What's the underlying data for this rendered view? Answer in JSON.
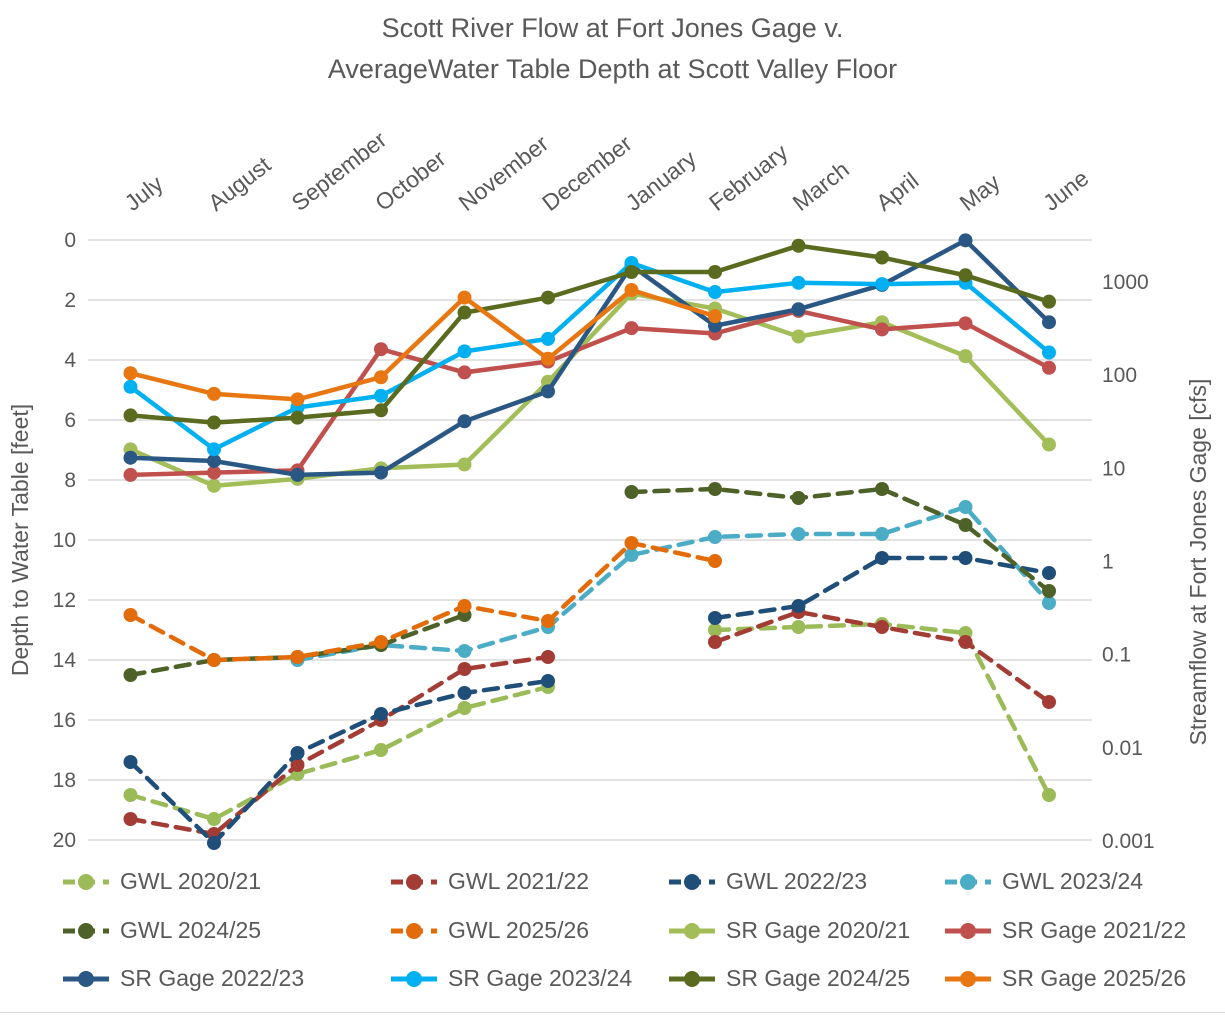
{
  "title": {
    "line1": "Scott River Flow at Fort Jones Gage v.",
    "line2": "AverageWater Table Depth at Scott Valley Floor"
  },
  "axes": {
    "x": {
      "categories": [
        "July",
        "August",
        "September",
        "October",
        "November",
        "December",
        "January",
        "February",
        "March",
        "April",
        "May",
        "June"
      ]
    },
    "y_left": {
      "label": "Depth to Water Table [feet]",
      "ticks": [
        "0",
        "2",
        "4",
        "6",
        "8",
        "10",
        "12",
        "14",
        "16",
        "18",
        "20"
      ],
      "min": 0,
      "max": 20,
      "inverted": true,
      "unit": "feet"
    },
    "y_right": {
      "label": "Streamflow at Fort Jones Gage [cfs]",
      "ticks": [
        "1000",
        "100",
        "10",
        "1",
        "0.1",
        "0.01",
        "0.001"
      ],
      "scale": "log",
      "unit": "cfs"
    }
  },
  "colors": {
    "text": "#595959",
    "gridline": "#d9d9d9"
  },
  "chart_data": {
    "type": "line",
    "title": "Scott River Flow at Fort Jones Gage v. AverageWater Table Depth at Scott Valley Floor",
    "categories": [
      "July",
      "August",
      "September",
      "October",
      "November",
      "December",
      "January",
      "February",
      "March",
      "April",
      "May",
      "June"
    ],
    "grid": true,
    "legend_position": "bottom",
    "ylim_left_depth_ft": [
      0,
      20
    ],
    "ylim_right_cfs_log": [
      0.001,
      1000
    ],
    "series": [
      {
        "name": "GWL 2020/21",
        "axis": "left",
        "unit": "feet",
        "style": "dashed",
        "color": "#9BBB59",
        "values": [
          18.5,
          19.3,
          17.8,
          17.0,
          15.6,
          14.9,
          null,
          13.0,
          12.9,
          12.8,
          13.1,
          18.5
        ]
      },
      {
        "name": "GWL 2021/22",
        "axis": "left",
        "unit": "feet",
        "style": "dashed",
        "color": "#A33C35",
        "values": [
          19.3,
          19.8,
          17.5,
          16.0,
          14.3,
          13.9,
          null,
          13.4,
          12.4,
          12.9,
          13.4,
          15.4
        ]
      },
      {
        "name": "GWL 2022/23",
        "axis": "left",
        "unit": "feet",
        "style": "dashed",
        "color": "#1F4E79",
        "values": [
          17.4,
          20.1,
          17.1,
          15.8,
          15.1,
          14.7,
          null,
          12.6,
          12.2,
          10.6,
          10.6,
          11.1
        ]
      },
      {
        "name": "GWL 2023/24",
        "axis": "left",
        "unit": "feet",
        "style": "dashed",
        "color": "#4BACC6",
        "values": [
          null,
          null,
          14.0,
          13.5,
          13.7,
          12.9,
          10.5,
          9.9,
          9.8,
          9.8,
          8.9,
          12.1
        ]
      },
      {
        "name": "GWL 2024/25",
        "axis": "left",
        "unit": "feet",
        "style": "dashed",
        "color": "#4E6128",
        "values": [
          14.5,
          14.0,
          13.9,
          13.5,
          12.5,
          null,
          8.4,
          8.3,
          8.6,
          8.3,
          9.5,
          11.7
        ]
      },
      {
        "name": "GWL 2025/26",
        "axis": "left",
        "unit": "feet",
        "style": "dashed",
        "color": "#E36C0A",
        "values": [
          12.5,
          14.0,
          13.9,
          13.4,
          12.2,
          12.7,
          10.1,
          10.7,
          null,
          null,
          null,
          null
        ]
      },
      {
        "name": "SR Gage 2020/21",
        "axis": "right",
        "unit": "cfs",
        "style": "solid",
        "color": "#A3BD59",
        "values": [
          16,
          6.5,
          7.7,
          10,
          11,
          85,
          750,
          520,
          260,
          370,
          160,
          18
        ]
      },
      {
        "name": "SR Gage 2021/22",
        "axis": "right",
        "unit": "cfs",
        "style": "solid",
        "color": "#C0504D",
        "values": [
          8.5,
          9,
          9.5,
          190,
          107,
          140,
          320,
          280,
          490,
          310,
          360,
          120
        ]
      },
      {
        "name": "SR Gage 2022/23",
        "axis": "right",
        "unit": "cfs",
        "style": "solid",
        "color": "#2A5784",
        "values": [
          13,
          12,
          8.5,
          9,
          32,
          67,
          1500,
          340,
          510,
          930,
          2800,
          370
        ]
      },
      {
        "name": "SR Gage 2023/24",
        "axis": "right",
        "unit": "cfs",
        "style": "solid",
        "color": "#00B0F0",
        "values": [
          75,
          16,
          45,
          60,
          180,
          245,
          1600,
          780,
          980,
          950,
          980,
          175
        ]
      },
      {
        "name": "SR Gage 2024/25",
        "axis": "right",
        "unit": "cfs",
        "style": "solid",
        "color": "#5A6B20",
        "values": [
          37,
          31,
          35,
          42,
          470,
          680,
          1280,
          1280,
          2450,
          1830,
          1180,
          615
        ]
      },
      {
        "name": "SR Gage 2025/26",
        "axis": "right",
        "unit": "cfs",
        "style": "solid",
        "color": "#E87711",
        "values": [
          105,
          63,
          55,
          95,
          680,
          150,
          820,
          430,
          null,
          null,
          null,
          null
        ]
      }
    ]
  }
}
